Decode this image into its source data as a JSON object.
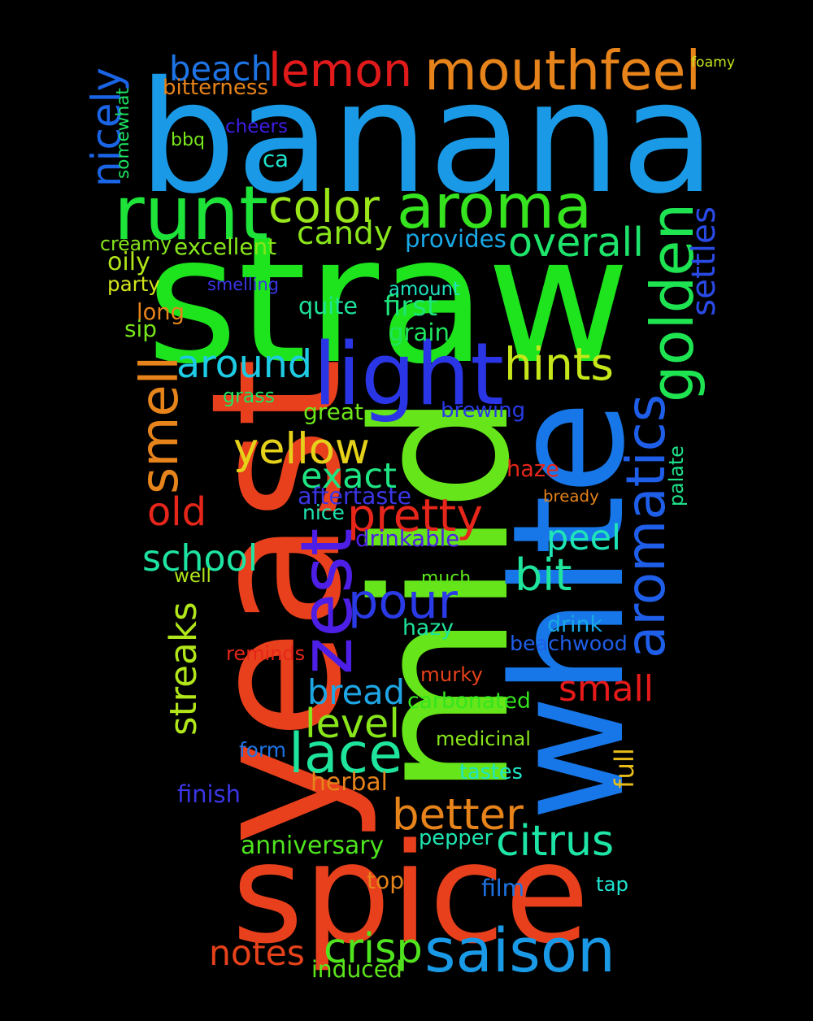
{
  "words": [
    {
      "text": "straw",
      "color": "#1ee41e"
    },
    {
      "text": "banana",
      "color": "#1a9ae6"
    },
    {
      "text": "yeast",
      "color": "#e8401c"
    },
    {
      "text": "mild",
      "color": "#66e61a"
    },
    {
      "text": "white",
      "color": "#1877e8"
    },
    {
      "text": "spice",
      "color": "#e8401c"
    },
    {
      "text": "runt",
      "color": "#1ee43a"
    },
    {
      "text": "aroma",
      "color": "#35e41e"
    },
    {
      "text": "light",
      "color": "#2a36e6"
    },
    {
      "text": "zest",
      "color": "#4d1fe6"
    },
    {
      "text": "golden",
      "color": "#1ee452"
    },
    {
      "text": "aromatics",
      "color": "#1e5ee8"
    },
    {
      "text": "lemon",
      "color": "#e01a1a"
    },
    {
      "text": "mouthfeel",
      "color": "#e6831a"
    },
    {
      "text": "beach",
      "color": "#1e74e4"
    },
    {
      "text": "smell",
      "color": "#e6831a"
    },
    {
      "text": "pour",
      "color": "#2a3ae6"
    },
    {
      "text": "saison",
      "color": "#1a9ae6"
    },
    {
      "text": "lace",
      "color": "#1ee49c"
    },
    {
      "text": "around",
      "color": "#1ecbe4"
    },
    {
      "text": "hints",
      "color": "#c6e61a"
    },
    {
      "text": "yellow",
      "color": "#e6d11a"
    },
    {
      "text": "pretty",
      "color": "#e6261a"
    },
    {
      "text": "better",
      "color": "#e6831a"
    },
    {
      "text": "nicely",
      "color": "#1a64e6"
    },
    {
      "text": "color",
      "color": "#99e61a"
    },
    {
      "text": "overall",
      "color": "#1ee46b"
    },
    {
      "text": "candy",
      "color": "#8ae61a"
    },
    {
      "text": "exact",
      "color": "#1ee482"
    },
    {
      "text": "school",
      "color": "#1ee4a3"
    },
    {
      "text": "old",
      "color": "#e6261a"
    },
    {
      "text": "bit",
      "color": "#1ee49c"
    },
    {
      "text": "peel",
      "color": "#1ee4b8"
    },
    {
      "text": "streaks",
      "color": "#b1e61a"
    },
    {
      "text": "bread",
      "color": "#1ea6e4"
    },
    {
      "text": "small",
      "color": "#e61a1a"
    },
    {
      "text": "level",
      "color": "#88e61a"
    },
    {
      "text": "citrus",
      "color": "#1ee4a6"
    },
    {
      "text": "crisp",
      "color": "#50e41e"
    },
    {
      "text": "notes",
      "color": "#e6411a"
    },
    {
      "text": "settles",
      "color": "#2a4ae6"
    },
    {
      "text": "foamy",
      "color": "#c6e61a"
    },
    {
      "text": "bitterness",
      "color": "#e6831a"
    },
    {
      "text": "somewhat",
      "color": "#1ee462"
    },
    {
      "text": "cheers",
      "color": "#3d1ee6"
    },
    {
      "text": "bbq",
      "color": "#78e61a"
    },
    {
      "text": "ca",
      "color": "#1ee4d0"
    },
    {
      "text": "creamy",
      "color": "#86e61a"
    },
    {
      "text": "excellent",
      "color": "#86e61a"
    },
    {
      "text": "provides",
      "color": "#1aa8e6"
    },
    {
      "text": "oily",
      "color": "#b1e61a"
    },
    {
      "text": "party",
      "color": "#d4e61a"
    },
    {
      "text": "smelling",
      "color": "#3a36e6"
    },
    {
      "text": "amount",
      "color": "#1ee4c3"
    },
    {
      "text": "quite",
      "color": "#1ee49a"
    },
    {
      "text": "first",
      "color": "#1ee47c"
    },
    {
      "text": "long",
      "color": "#e6831a"
    },
    {
      "text": "sip",
      "color": "#78e61a"
    },
    {
      "text": "grain",
      "color": "#1ee45e"
    },
    {
      "text": "grass",
      "color": "#1ee462"
    },
    {
      "text": "brewing",
      "color": "#2a3ae6"
    },
    {
      "text": "great",
      "color": "#6ee61a"
    },
    {
      "text": "haze",
      "color": "#e6261a"
    },
    {
      "text": "palate",
      "color": "#1ee48a"
    },
    {
      "text": "aftertaste",
      "color": "#3a36e6"
    },
    {
      "text": "bready",
      "color": "#e6831a"
    },
    {
      "text": "nice",
      "color": "#1ee4b0"
    },
    {
      "text": "drinkable",
      "color": "#4d1fe6"
    },
    {
      "text": "well",
      "color": "#b1e61a"
    },
    {
      "text": "much",
      "color": "#5ce61a"
    },
    {
      "text": "hazy",
      "color": "#1ee49c"
    },
    {
      "text": "drink",
      "color": "#1aa8e6"
    },
    {
      "text": "reminds",
      "color": "#e6261a"
    },
    {
      "text": "beachwood",
      "color": "#1e5ee8"
    },
    {
      "text": "murky",
      "color": "#e6411a"
    },
    {
      "text": "carbonated",
      "color": "#35e41e"
    },
    {
      "text": "form",
      "color": "#1e74e4"
    },
    {
      "text": "medicinal",
      "color": "#88e61a"
    },
    {
      "text": "full",
      "color": "#e6bc1a"
    },
    {
      "text": "finish",
      "color": "#3a36e6"
    },
    {
      "text": "herbal",
      "color": "#e6831a"
    },
    {
      "text": "tastes",
      "color": "#1ee4c3"
    },
    {
      "text": "anniversary",
      "color": "#4ee41e"
    },
    {
      "text": "pepper",
      "color": "#1ee4b0"
    },
    {
      "text": "top",
      "color": "#e6831a"
    },
    {
      "text": "film",
      "color": "#1e74e4"
    },
    {
      "text": "tap",
      "color": "#1ee4d0"
    },
    {
      "text": "induced",
      "color": "#5ce61a"
    }
  ]
}
